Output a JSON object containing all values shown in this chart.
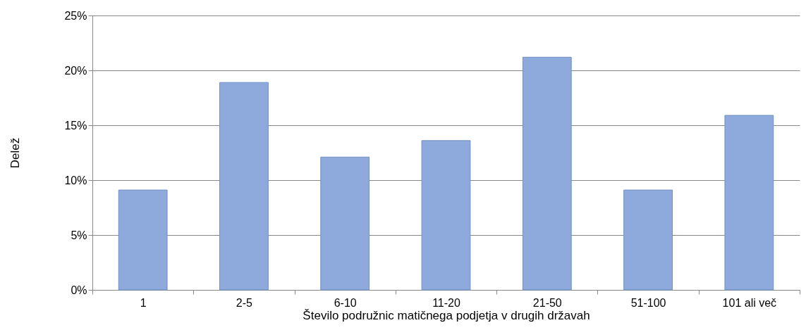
{
  "chart_data": {
    "type": "bar",
    "xlabel": "Število podružnic matičnega podjetja v drugih državah",
    "ylabel": "Delež",
    "categories": [
      "1",
      "2-5",
      "6-10",
      "11-20",
      "21-50",
      "51-100",
      "101 ali več"
    ],
    "values": [
      9.1,
      18.9,
      12.1,
      13.6,
      21.2,
      9.1,
      15.9
    ],
    "color": "#8eaadc",
    "ylim": [
      0,
      25
    ],
    "yticks": [
      {
        "value": 0,
        "label": "0%"
      },
      {
        "value": 5,
        "label": "5%"
      },
      {
        "value": 10,
        "label": "10%"
      },
      {
        "value": 15,
        "label": "15%"
      },
      {
        "value": 20,
        "label": "20%"
      },
      {
        "value": 25,
        "label": "25%"
      }
    ],
    "grid": "y"
  }
}
